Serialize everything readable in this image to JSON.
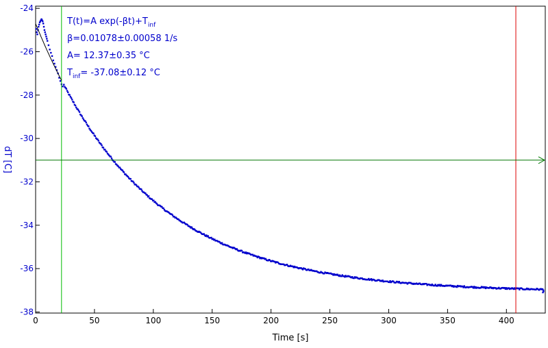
{
  "chart_data": {
    "type": "scatter",
    "title": "",
    "xlabel": "Time [s]",
    "ylabel": "dT [C]",
    "xlim": [
      0,
      433
    ],
    "ylim": [
      -38.05,
      -23.9
    ],
    "x_ticks": [
      0,
      50,
      100,
      150,
      200,
      250,
      300,
      350,
      400
    ],
    "y_ticks": [
      -24,
      -26,
      -28,
      -30,
      -32,
      -34,
      -36,
      -38
    ],
    "x_tick_labels": [
      "0",
      "50",
      "100",
      "150",
      "200",
      "250",
      "300",
      "350",
      "400"
    ],
    "y_tick_labels": [
      "-24",
      "-26",
      "-28",
      "-30",
      "-32",
      "-34",
      "-36",
      "-38"
    ],
    "grid": false,
    "fit": {
      "model": "T(t)=A exp(-βt)+T_inf",
      "beta": 0.01078,
      "beta_err": 0.00058,
      "A": 12.37,
      "A_err": 0.35,
      "T_inf": -37.08,
      "T_inf_err": 0.12,
      "x_range": [
        0,
        22
      ]
    },
    "annotations": {
      "line1": "T(t)=A exp(-βt)+T",
      "line1_sub": "inf",
      "line2": "β=0.01078±0.00058 1/s",
      "line3": "A= 12.37±0.35 °C",
      "line4_prefix": "T",
      "line4_sub": "inf",
      "line4_rest": "= -37.08±0.12 °C"
    },
    "markers": {
      "vertical_green_x": 22,
      "vertical_red_x": 408,
      "horizontal_green_y": -31.0
    },
    "series": [
      {
        "points": [
          [
            0.5,
            -24.95
          ],
          [
            1,
            -25.1
          ],
          [
            1.5,
            -25.2
          ],
          [
            2,
            -25.0
          ],
          [
            2.5,
            -24.85
          ],
          [
            3,
            -24.75
          ],
          [
            3.5,
            -24.65
          ],
          [
            4,
            -24.6
          ],
          [
            4.5,
            -24.55
          ],
          [
            5,
            -24.5
          ],
          [
            5.5,
            -24.55
          ],
          [
            6,
            -24.6
          ],
          [
            6.5,
            -24.7
          ],
          [
            7,
            -24.85
          ],
          [
            7.5,
            -25.0
          ],
          [
            8,
            -25.1
          ],
          [
            8.5,
            -25.2
          ],
          [
            9,
            -25.3
          ],
          [
            9.5,
            -25.4
          ],
          [
            10,
            -25.5
          ],
          [
            11,
            -25.7
          ],
          [
            12,
            -25.9
          ],
          [
            13,
            -26.05
          ],
          [
            14,
            -26.2
          ],
          [
            15,
            -26.4
          ],
          [
            16,
            -26.55
          ],
          [
            17,
            -26.7
          ],
          [
            18,
            -26.85
          ],
          [
            19,
            -27.0
          ],
          [
            20,
            -27.2
          ],
          [
            21,
            -27.35
          ],
          [
            22,
            -27.5
          ],
          [
            23,
            -27.6
          ]
        ],
        "curve": {
          "A": 12.37,
          "beta": 0.01078,
          "T_inf": -37.08,
          "x_start": 24,
          "x_end": 432,
          "step": 0.7,
          "noise": 0.035
        },
        "tail_points": [
          [
            430.5,
            -36.95
          ],
          [
            431,
            -37.1
          ],
          [
            431.5,
            -37.05
          ]
        ]
      }
    ],
    "colors": {
      "data": "#0000cc",
      "axis_text": "#0000cc",
      "fit_line": "#000000",
      "green_marker": "#00bb00",
      "green_hline": "#007700",
      "red_marker": "#dd0000",
      "frame": "#000000"
    }
  }
}
